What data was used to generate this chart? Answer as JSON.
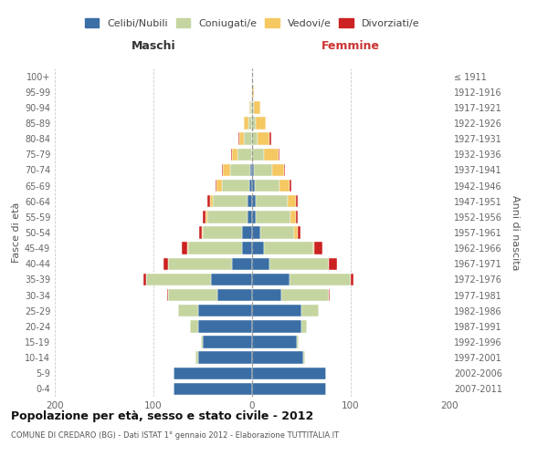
{
  "age_groups": [
    "0-4",
    "5-9",
    "10-14",
    "15-19",
    "20-24",
    "25-29",
    "30-34",
    "35-39",
    "40-44",
    "45-49",
    "50-54",
    "55-59",
    "60-64",
    "65-69",
    "70-74",
    "75-79",
    "80-84",
    "85-89",
    "90-94",
    "95-99",
    "100+"
  ],
  "birth_years": [
    "2007-2011",
    "2002-2006",
    "1997-2001",
    "1992-1996",
    "1987-1991",
    "1982-1986",
    "1977-1981",
    "1972-1976",
    "1967-1971",
    "1962-1966",
    "1957-1961",
    "1952-1956",
    "1947-1951",
    "1942-1946",
    "1937-1941",
    "1932-1936",
    "1927-1931",
    "1922-1926",
    "1917-1921",
    "1912-1916",
    "≤ 1911"
  ],
  "males_celibe": [
    80,
    80,
    55,
    50,
    55,
    55,
    35,
    42,
    20,
    10,
    10,
    5,
    5,
    3,
    2,
    0,
    0,
    0,
    0,
    0,
    0
  ],
  "males_coniugato": [
    0,
    0,
    2,
    2,
    8,
    20,
    50,
    65,
    65,
    55,
    40,
    40,
    35,
    28,
    20,
    15,
    8,
    4,
    2,
    0,
    0
  ],
  "males_vedovo": [
    0,
    0,
    0,
    0,
    0,
    0,
    0,
    0,
    0,
    1,
    1,
    2,
    3,
    5,
    8,
    5,
    5,
    4,
    1,
    0,
    0
  ],
  "males_divorziato": [
    0,
    0,
    0,
    0,
    0,
    0,
    1,
    3,
    5,
    5,
    3,
    3,
    2,
    1,
    1,
    1,
    1,
    0,
    0,
    0,
    0
  ],
  "females_nubile": [
    75,
    75,
    52,
    45,
    50,
    50,
    30,
    38,
    18,
    12,
    8,
    4,
    4,
    3,
    2,
    0,
    0,
    0,
    0,
    0,
    0
  ],
  "females_coniugata": [
    0,
    0,
    2,
    2,
    6,
    18,
    48,
    62,
    60,
    50,
    35,
    35,
    32,
    25,
    18,
    12,
    6,
    4,
    2,
    0,
    0
  ],
  "females_vedova": [
    0,
    0,
    0,
    0,
    0,
    0,
    0,
    0,
    0,
    1,
    3,
    5,
    8,
    10,
    12,
    15,
    12,
    10,
    6,
    2,
    0
  ],
  "females_divorziata": [
    0,
    0,
    0,
    0,
    0,
    0,
    1,
    3,
    8,
    8,
    3,
    2,
    2,
    2,
    1,
    1,
    1,
    0,
    0,
    0,
    0
  ],
  "color_celibe": "#3a6ea5",
  "color_coniugato": "#c5d5a0",
  "color_vedovo": "#f5c862",
  "color_divorziato": "#cc2222",
  "title_main": "Popolazione per età, sesso e stato civile - 2012",
  "title_sub": "COMUNE DI CREDARO (BG) - Dati ISTAT 1° gennaio 2012 - Elaborazione TUTTITALIA.IT",
  "ylabel_left": "Fasce di età",
  "ylabel_right": "Anni di nascita",
  "label_maschi": "Maschi",
  "label_femmine": "Femmine",
  "xlim": 200,
  "bg_color": "#ffffff",
  "grid_color": "#cccccc",
  "legend_labels": [
    "Celibi/Nubili",
    "Coniugati/e",
    "Vedovi/e",
    "Divorziati/e"
  ]
}
